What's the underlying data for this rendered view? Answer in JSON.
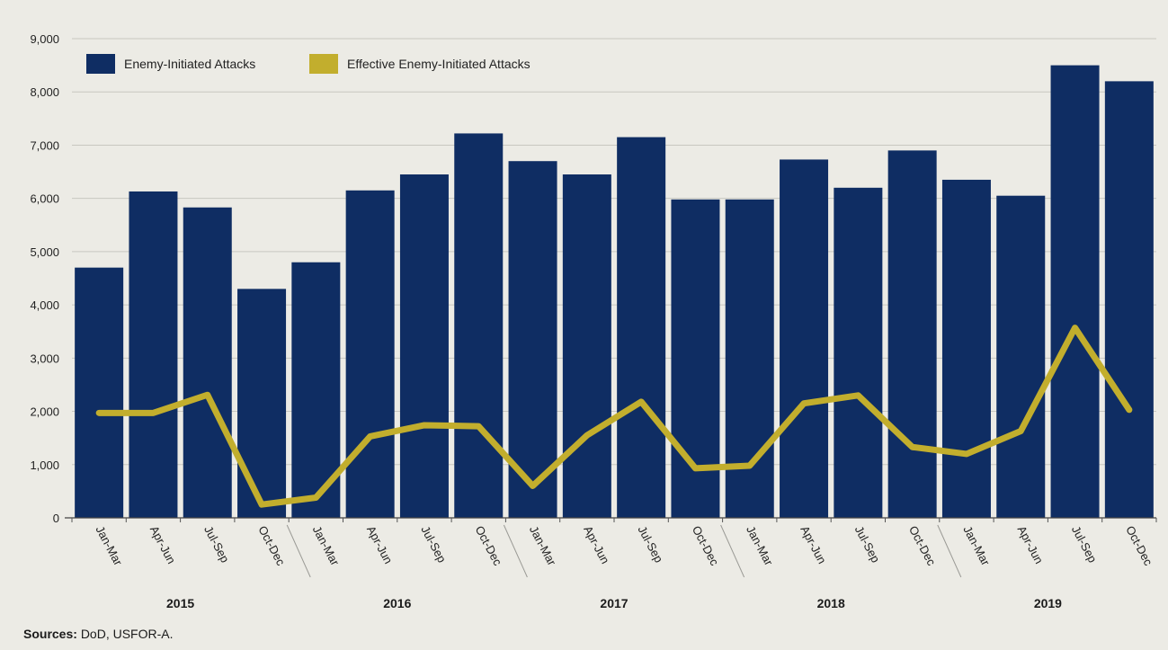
{
  "chart_data": {
    "type": "bar",
    "categories": [
      "Jan-Mar",
      "Apr-Jun",
      "Jul-Sep",
      "Oct-Dec",
      "Jan-Mar",
      "Apr-Jun",
      "Jul-Sep",
      "Oct-Dec",
      "Jan-Mar",
      "Apr-Jun",
      "Jul-Sep",
      "Oct-Dec",
      "Jan-Mar",
      "Apr-Jun",
      "Jul-Sep",
      "Oct-Dec",
      "Jan-Mar",
      "Apr-Jun",
      "Jul-Sep",
      "Oct-Dec"
    ],
    "years": [
      "2015",
      "2016",
      "2017",
      "2018",
      "2019"
    ],
    "series": [
      {
        "name": "Enemy-Initiated Attacks",
        "type": "bar",
        "color": "#0f2d63",
        "values": [
          4700,
          6130,
          5830,
          4300,
          4800,
          6150,
          6450,
          7220,
          6700,
          6450,
          7150,
          5980,
          5980,
          6730,
          6200,
          6900,
          6350,
          6050,
          8500,
          8200
        ]
      },
      {
        "name": "Effective Enemy-Initiated Attacks",
        "type": "line",
        "color": "#c2ae2d",
        "values": [
          1970,
          1970,
          2310,
          250,
          380,
          1530,
          1740,
          1720,
          600,
          1550,
          2180,
          930,
          980,
          2150,
          2300,
          1330,
          1200,
          1630,
          3570,
          2030
        ]
      }
    ],
    "yticks": [
      "0",
      "1,000",
      "2,000",
      "3,000",
      "4,000",
      "5,000",
      "6,000",
      "7,000",
      "8,000",
      "9,000"
    ],
    "ylim": [
      0,
      9000
    ],
    "grid": true,
    "legend_position": "top-left"
  },
  "source": {
    "label": "Sources:",
    "text": "DoD, USFOR-A."
  }
}
